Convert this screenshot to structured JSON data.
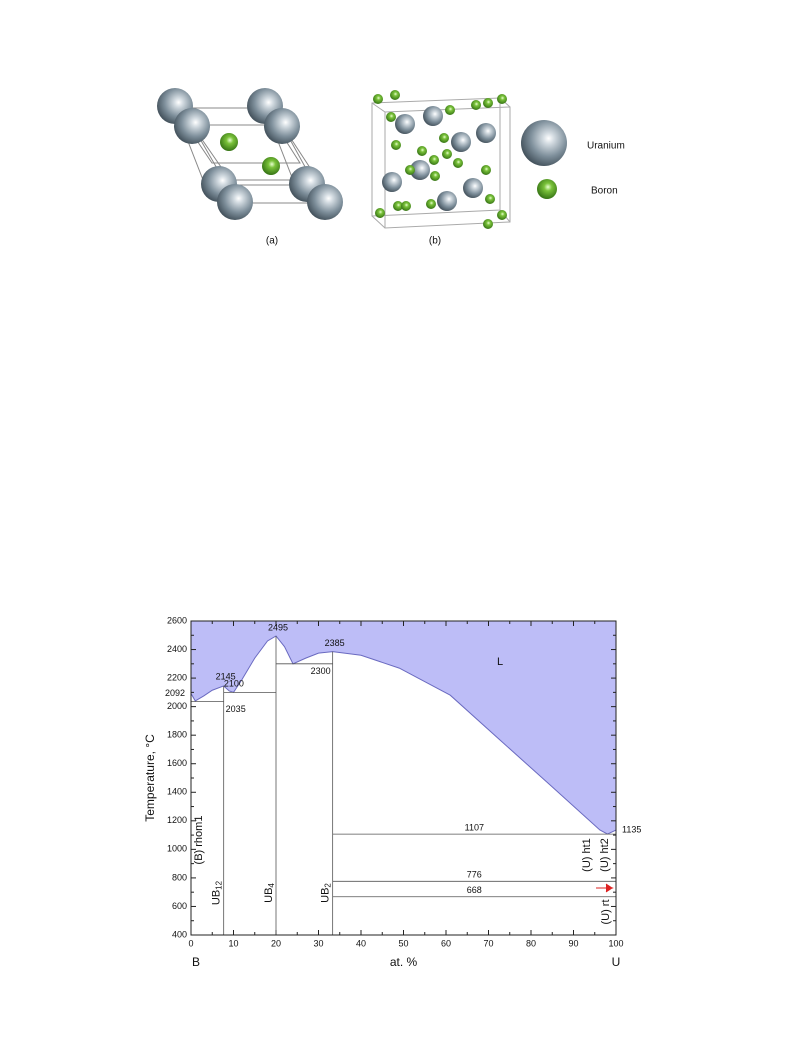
{
  "figure1": {
    "panel_a": "(a)",
    "panel_b": "(b)",
    "legend": [
      "Uranium",
      "Boron"
    ]
  },
  "phase_diagram": {
    "ylabel": "Temperature, °C",
    "xlabel": "at. %",
    "left_element": "B",
    "right_element": "U",
    "xlim": [
      0,
      100
    ],
    "xticks": [
      0,
      10,
      20,
      30,
      40,
      50,
      60,
      70,
      80,
      90,
      100
    ],
    "ylim": [
      400,
      2600
    ],
    "yticks": [
      400,
      600,
      800,
      1000,
      1200,
      1400,
      1600,
      1800,
      2000,
      2200,
      2400,
      2600
    ],
    "liquidus": {
      "x": [
        0,
        1,
        3,
        5,
        7.69,
        9,
        10,
        12,
        15,
        18,
        20,
        22,
        24,
        27,
        30,
        33.33,
        40,
        49,
        61,
        72.7,
        84.5,
        96.2,
        98,
        100
      ],
      "y": [
        2092,
        2040,
        2075,
        2115,
        2145,
        2110,
        2100,
        2190,
        2340,
        2460,
        2495,
        2420,
        2300,
        2340,
        2375,
        2385,
        2360,
        2270,
        2080,
        1766,
        1451,
        1136,
        1107,
        1135
      ]
    },
    "region_label": "L",
    "invariants": [
      {
        "T": 2035,
        "x": [
          0,
          7.69
        ]
      },
      {
        "T": 2100,
        "x": [
          7.69,
          20
        ]
      },
      {
        "T": 2300,
        "x": [
          20,
          33.33
        ]
      },
      {
        "T": 1107,
        "x": [
          33.33,
          100
        ]
      },
      {
        "T": 776,
        "x": [
          33.33,
          100
        ]
      },
      {
        "T": 668,
        "x": [
          33.33,
          100
        ]
      }
    ],
    "points": [
      {
        "x": 0,
        "T": 2092
      },
      {
        "x": 7.69,
        "T": 2145
      },
      {
        "x": 20,
        "T": 2495
      },
      {
        "x": 33.33,
        "T": 2385
      },
      {
        "x": 100,
        "T": 1135
      }
    ],
    "compounds": [
      {
        "name": "UB",
        "sub": "12",
        "x": 7.69
      },
      {
        "name": "UB",
        "sub": "4",
        "x": 20
      },
      {
        "name": "UB",
        "sub": "2",
        "x": 33.33
      }
    ],
    "phases": [
      "(B) rhom1",
      "(U) rt",
      "(U) ht1",
      "(U) ht2"
    ]
  }
}
